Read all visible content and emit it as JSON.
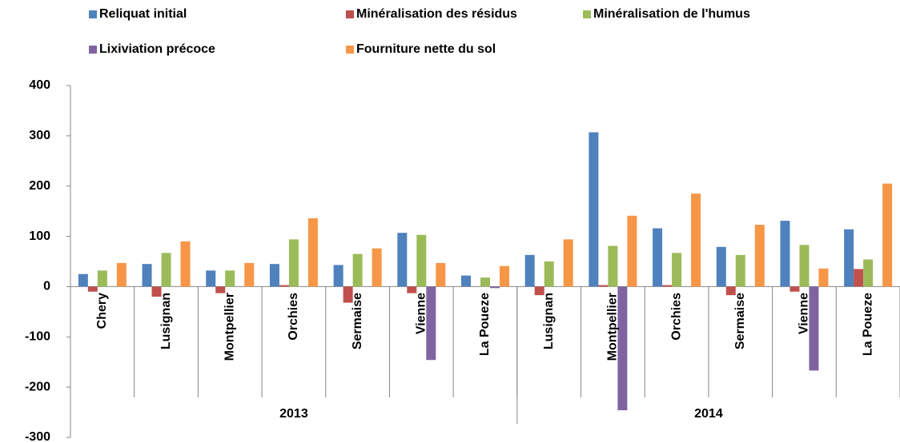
{
  "chart_data": {
    "type": "bar",
    "groups": [
      {
        "name": "2013",
        "categories": [
          "Chery",
          "Lusignan",
          "Montpellier",
          "Orchies",
          "Sermaise",
          "Vienne",
          "La Poueze"
        ]
      },
      {
        "name": "2014",
        "categories": [
          "Lusignan",
          "Montpellier",
          "Orchies",
          "Sermaise",
          "Vienne",
          "La Poueze"
        ]
      }
    ],
    "series": [
      {
        "name": "Reliquat initial",
        "color": "#4f81bd",
        "values": [
          25,
          45,
          32,
          45,
          43,
          107,
          22,
          63,
          307,
          116,
          79,
          131,
          114
        ]
      },
      {
        "name": "Minéralisation des résidus",
        "color": "#c0504d",
        "values": [
          -10,
          -20,
          -13,
          3,
          -32,
          -13,
          0,
          -17,
          3,
          3,
          -17,
          -10,
          35
        ]
      },
      {
        "name": "Minéralisation de l'humus",
        "color": "#9bbb59",
        "values": [
          32,
          67,
          32,
          94,
          65,
          103,
          18,
          50,
          81,
          67,
          63,
          83,
          54
        ]
      },
      {
        "name": "Lixiviation précoce",
        "color": "#8064a2",
        "values": [
          0,
          0,
          0,
          0,
          0,
          -146,
          -3,
          0,
          -246,
          0,
          0,
          -167,
          0
        ]
      },
      {
        "name": "Fourniture nette du sol",
        "color": "#f79646",
        "values": [
          47,
          90,
          47,
          136,
          76,
          47,
          41,
          94,
          141,
          185,
          123,
          36,
          205
        ]
      }
    ],
    "ylim": [
      -300,
      400
    ],
    "yticks": [
      -300,
      -200,
      -100,
      0,
      100,
      200,
      300,
      400
    ],
    "grid": false
  }
}
